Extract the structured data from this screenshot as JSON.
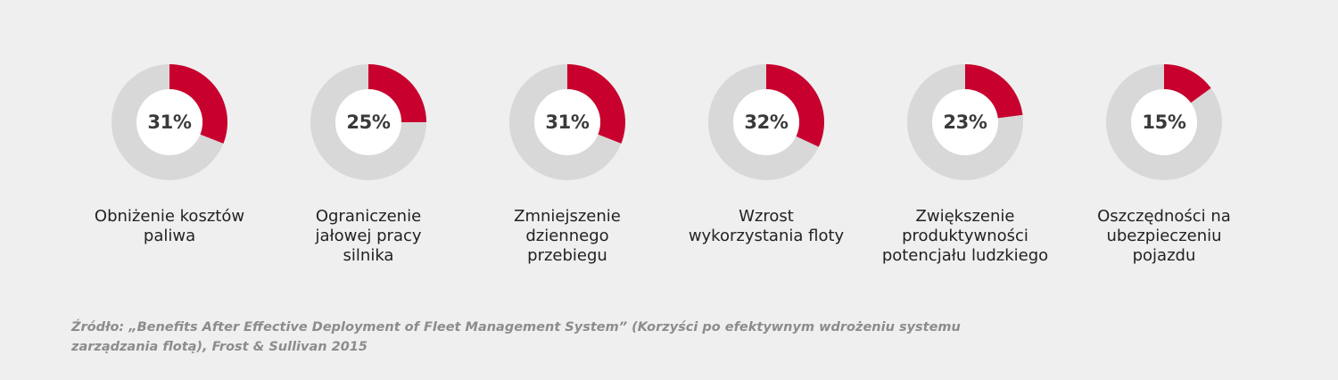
{
  "chart_data": [
    {
      "type": "pie",
      "value": 31,
      "value_label": "31%",
      "label_lines": [
        "Obniżenie kosztów",
        "paliwa"
      ]
    },
    {
      "type": "pie",
      "value": 25,
      "value_label": "25%",
      "label_lines": [
        "Ograniczenie",
        "jałowej pracy",
        "silnika"
      ]
    },
    {
      "type": "pie",
      "value": 31,
      "value_label": "31%",
      "label_lines": [
        "Zmniejszenie",
        "dziennego",
        "przebiegu"
      ]
    },
    {
      "type": "pie",
      "value": 32,
      "value_label": "32%",
      "label_lines": [
        "Wzrost",
        "wykorzystania floty"
      ]
    },
    {
      "type": "pie",
      "value": 23,
      "value_label": "23%",
      "label_lines": [
        "Zwiększenie",
        "produktywności",
        "potencjału ludzkiego"
      ]
    },
    {
      "type": "pie",
      "value": 15,
      "value_label": "15%",
      "label_lines": [
        "Oszczędności na",
        "ubezpieczeniu",
        "pojazdu"
      ]
    }
  ],
  "colors": {
    "highlight": "#c8002d",
    "track": "#d8d8d8",
    "center": "#ffffff",
    "background": "#efefef"
  },
  "source": {
    "line1": "Źródło: „Benefits After Effective Deployment of Fleet Management System” (Korzyści po efektywnym wdrożeniu systemu",
    "line2": "zarządzania flotą), Frost & Sullivan 2015"
  }
}
